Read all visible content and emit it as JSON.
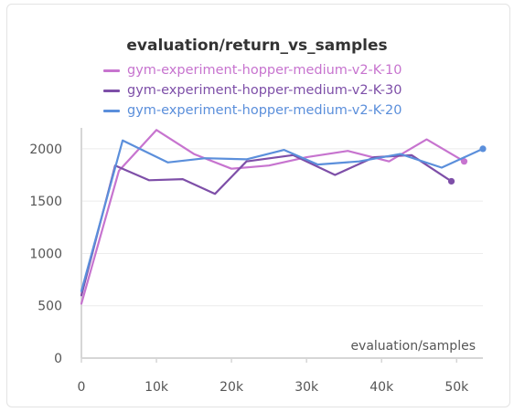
{
  "chart_data": {
    "type": "line",
    "title": "evaluation/return_vs_samples",
    "xlabel": "evaluation/samples",
    "ylabel": "",
    "xlim": [
      0,
      53500
    ],
    "ylim": [
      0,
      2200
    ],
    "xticks": [
      0,
      10000,
      20000,
      30000,
      40000,
      50000
    ],
    "xtick_labels": [
      "0",
      "10k",
      "20k",
      "30k",
      "40k",
      "50k"
    ],
    "yticks": [
      0,
      500,
      1000,
      1500,
      2000
    ],
    "ytick_labels": [
      "0",
      "500",
      "1000",
      "1500",
      "2000"
    ],
    "grid": true,
    "legend_position": "top",
    "series": [
      {
        "name": "gym-experiment-hopper-medium-v2-K-10",
        "color": "#c774cf",
        "x": [
          0,
          5000,
          10000,
          15000,
          20000,
          25000,
          30000,
          35500,
          41000,
          46000,
          51000
        ],
        "y": [
          520,
          1790,
          2180,
          1950,
          1810,
          1840,
          1920,
          1980,
          1880,
          2090,
          1880
        ]
      },
      {
        "name": "gym-experiment-hopper-medium-v2-K-30",
        "color": "#7e4fa8",
        "x": [
          0,
          4500,
          9000,
          13500,
          17800,
          22000,
          28200,
          33800,
          39000,
          44000,
          49300
        ],
        "y": [
          600,
          1840,
          1700,
          1710,
          1570,
          1880,
          1940,
          1750,
          1920,
          1940,
          1690
        ]
      },
      {
        "name": "gym-experiment-hopper-medium-v2-K-20",
        "color": "#5b8fdb",
        "x": [
          0,
          5500,
          11500,
          16500,
          22000,
          27000,
          31500,
          37000,
          42500,
          48000,
          53500
        ],
        "y": [
          640,
          2080,
          1870,
          1910,
          1900,
          1990,
          1850,
          1880,
          1950,
          1820,
          2000
        ]
      }
    ]
  }
}
